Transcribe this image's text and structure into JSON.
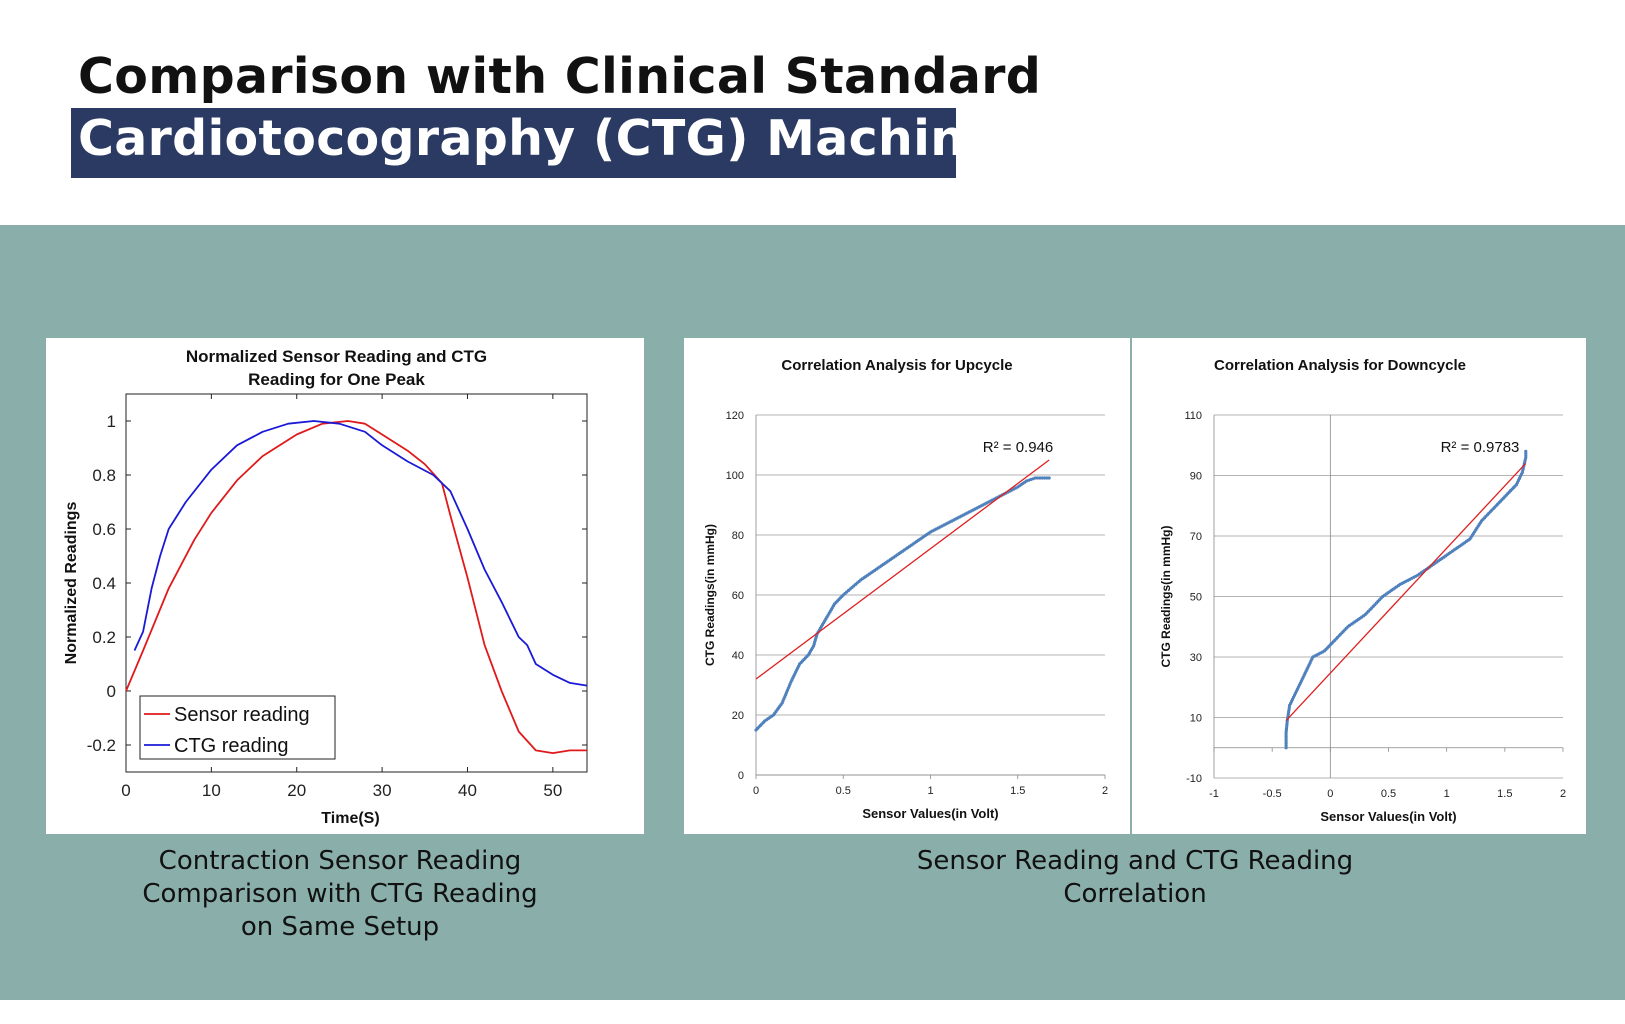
{
  "header": {
    "title_line1": "Comparison with Clinical Standard",
    "title_line2": "Cardiotocography (CTG) Machine"
  },
  "captions": {
    "left": [
      "Contraction Sensor Reading",
      "Comparison with CTG Reading",
      "on Same Setup"
    ],
    "right": [
      "Sensor Reading and CTG Reading",
      "Correlation"
    ]
  },
  "colors": {
    "title_box": "#2b3a63",
    "band": "#8aafab",
    "sensor_line": "#e0191b",
    "ctg_line": "#1a1ad6",
    "scatter_points": "#4f81bd",
    "trend_line": "#e02020"
  },
  "chart_data": [
    {
      "type": "line",
      "title_lines": [
        "Normalized Sensor Reading and CTG",
        "Reading for One Peak"
      ],
      "xlabel": "Time(S)",
      "ylabel": "Normalized Readings",
      "xlim": [
        0,
        54
      ],
      "ylim": [
        -0.3,
        1.1
      ],
      "xticks": [
        0,
        10,
        20,
        30,
        40,
        50
      ],
      "yticks": [
        -0.2,
        0,
        0.2,
        0.4,
        0.6,
        0.8,
        1
      ],
      "ytick_labels": [
        "-0.2",
        "0",
        "0.2",
        "0.4",
        "0.6",
        "0.8",
        "1"
      ],
      "legend": "bottom-left",
      "series": [
        {
          "name": "Sensor reading",
          "color": "#e0191b",
          "points": [
            [
              0,
              0
            ],
            [
              2,
              0.15
            ],
            [
              5,
              0.38
            ],
            [
              8,
              0.56
            ],
            [
              10,
              0.66
            ],
            [
              13,
              0.78
            ],
            [
              16,
              0.87
            ],
            [
              20,
              0.95
            ],
            [
              23,
              0.99
            ],
            [
              26,
              1.0
            ],
            [
              28,
              0.99
            ],
            [
              30,
              0.95
            ],
            [
              33,
              0.89
            ],
            [
              35,
              0.84
            ],
            [
              37,
              0.77
            ],
            [
              38,
              0.65
            ],
            [
              40,
              0.42
            ],
            [
              42,
              0.17
            ],
            [
              44,
              0.0
            ],
            [
              46,
              -0.15
            ],
            [
              48,
              -0.22
            ],
            [
              50,
              -0.23
            ],
            [
              52,
              -0.22
            ],
            [
              54,
              -0.22
            ]
          ]
        },
        {
          "name": "CTG reading",
          "color": "#1a1ad6",
          "points": [
            [
              1,
              0.15
            ],
            [
              2,
              0.22
            ],
            [
              3,
              0.38
            ],
            [
              4,
              0.5
            ],
            [
              5,
              0.6
            ],
            [
              7,
              0.7
            ],
            [
              10,
              0.82
            ],
            [
              13,
              0.91
            ],
            [
              16,
              0.96
            ],
            [
              19,
              0.99
            ],
            [
              22,
              1.0
            ],
            [
              25,
              0.99
            ],
            [
              28,
              0.96
            ],
            [
              30,
              0.91
            ],
            [
              33,
              0.85
            ],
            [
              36,
              0.8
            ],
            [
              38,
              0.74
            ],
            [
              40,
              0.6
            ],
            [
              42,
              0.45
            ],
            [
              44,
              0.33
            ],
            [
              46,
              0.2
            ],
            [
              47,
              0.17
            ],
            [
              48,
              0.1
            ],
            [
              50,
              0.06
            ],
            [
              52,
              0.03
            ],
            [
              54,
              0.02
            ]
          ]
        }
      ]
    },
    {
      "type": "scatter",
      "title": "Correlation Analysis for Upcycle",
      "xlabel": "Sensor Values(in Volt)",
      "ylabel": "CTG Readings(in mmHg)",
      "xlim": [
        0,
        2
      ],
      "ylim": [
        0,
        120
      ],
      "xticks": [
        0,
        0.5,
        1,
        1.5,
        2
      ],
      "xtick_labels": [
        "0",
        "0.5",
        "1",
        "1.5",
        "2"
      ],
      "yticks": [
        0,
        20,
        40,
        60,
        80,
        100,
        120
      ],
      "annotation": "R² = 0.946",
      "trendline": {
        "x": [
          0,
          1.68
        ],
        "y": [
          32,
          105
        ]
      },
      "points": [
        [
          0,
          15
        ],
        [
          0.05,
          18
        ],
        [
          0.1,
          20
        ],
        [
          0.15,
          24
        ],
        [
          0.2,
          31
        ],
        [
          0.25,
          37
        ],
        [
          0.3,
          40
        ],
        [
          0.33,
          43
        ],
        [
          0.35,
          47
        ],
        [
          0.4,
          52
        ],
        [
          0.45,
          57
        ],
        [
          0.5,
          60
        ],
        [
          0.6,
          65
        ],
        [
          0.7,
          69
        ],
        [
          0.8,
          73
        ],
        [
          0.9,
          77
        ],
        [
          1.0,
          81
        ],
        [
          1.1,
          84
        ],
        [
          1.2,
          87
        ],
        [
          1.3,
          90
        ],
        [
          1.4,
          93
        ],
        [
          1.5,
          96
        ],
        [
          1.55,
          98
        ],
        [
          1.6,
          99
        ],
        [
          1.68,
          99
        ]
      ]
    },
    {
      "type": "scatter",
      "title": "Correlation Analysis for Downcycle",
      "xlabel": "Sensor Values(in Volt)",
      "ylabel": "CTG Readings(in mmHg)",
      "xlim": [
        -1,
        2
      ],
      "ylim": [
        -10,
        110
      ],
      "xticks": [
        -1,
        -0.5,
        0,
        0.5,
        1,
        1.5,
        2
      ],
      "xtick_labels": [
        "-1",
        "-0.5",
        "0",
        "0.5",
        "1",
        "1.5",
        "2"
      ],
      "yticks": [
        -10,
        10,
        30,
        50,
        70,
        90,
        110
      ],
      "annotation": "R² = 0.9783",
      "trendline": {
        "x": [
          -0.38,
          1.68
        ],
        "y": [
          9,
          94
        ]
      },
      "points": [
        [
          -0.38,
          0
        ],
        [
          -0.38,
          5
        ],
        [
          -0.37,
          9
        ],
        [
          -0.35,
          14
        ],
        [
          -0.3,
          18
        ],
        [
          -0.25,
          22
        ],
        [
          -0.2,
          26
        ],
        [
          -0.15,
          30
        ],
        [
          -0.05,
          32
        ],
        [
          0.05,
          36
        ],
        [
          0.15,
          40
        ],
        [
          0.3,
          44
        ],
        [
          0.45,
          50
        ],
        [
          0.6,
          54
        ],
        [
          0.75,
          57
        ],
        [
          0.9,
          61
        ],
        [
          1.05,
          65
        ],
        [
          1.2,
          69
        ],
        [
          1.3,
          75
        ],
        [
          1.4,
          79
        ],
        [
          1.5,
          83
        ],
        [
          1.6,
          87
        ],
        [
          1.65,
          91
        ],
        [
          1.68,
          96
        ],
        [
          1.68,
          98
        ]
      ]
    }
  ]
}
